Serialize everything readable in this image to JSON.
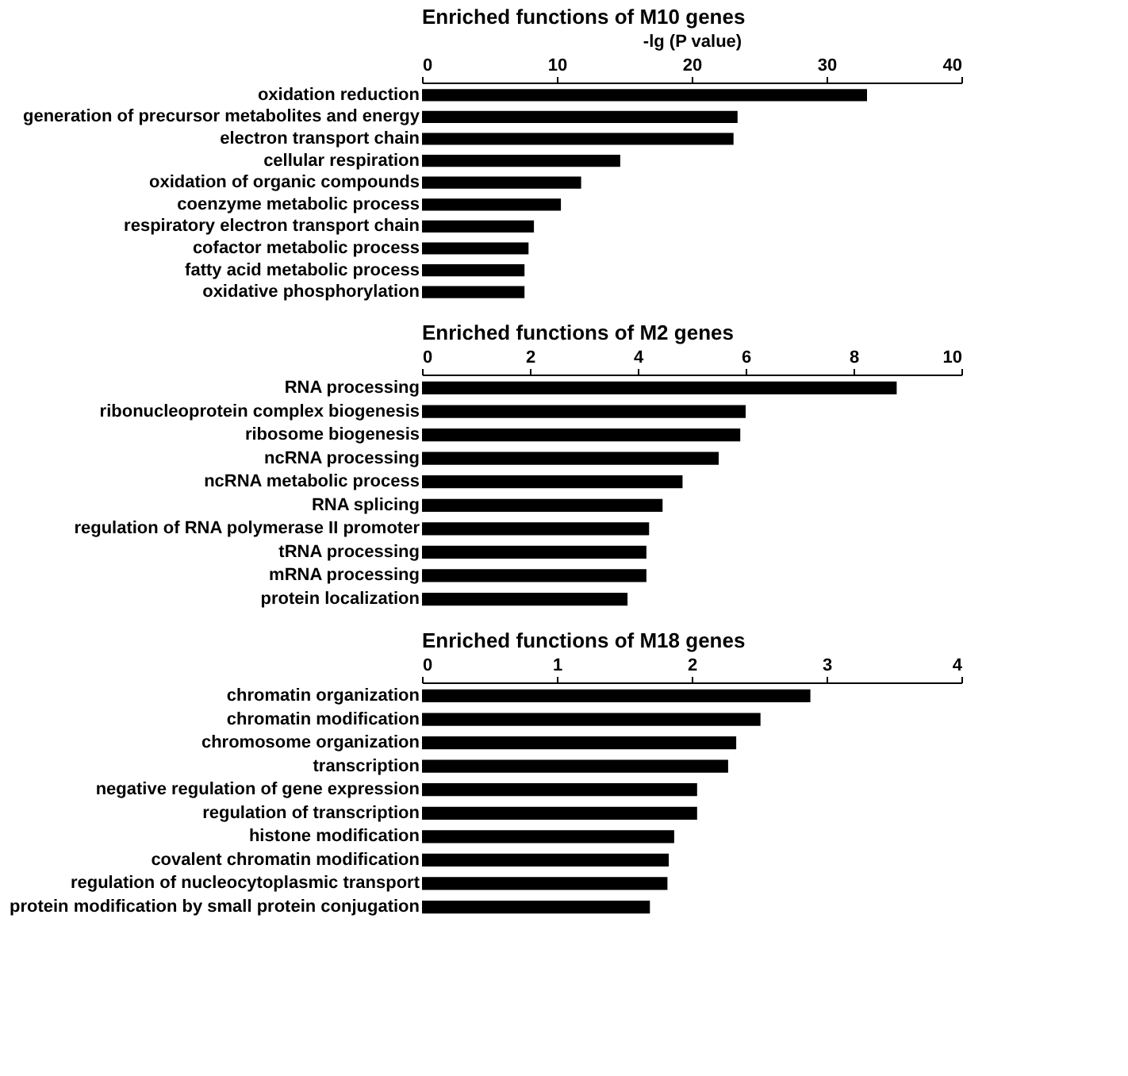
{
  "chart_data": [
    {
      "type": "bar",
      "orientation": "horizontal",
      "title": "Enriched  functions of M10 genes",
      "xlabel": "-lg (P value)",
      "color": "#000000",
      "xlim": [
        0,
        40
      ],
      "xticks": [
        0,
        10,
        20,
        30,
        40
      ],
      "categories": [
        "oxidation reduction",
        "generation of precursor metabolites and energy",
        "electron transport chain",
        "cellular respiration",
        "oxidation of organic compounds",
        "coenzyme metabolic process",
        "respiratory electron transport chain",
        "cofactor metabolic process",
        "fatty acid metabolic process",
        "oxidative phosphorylation"
      ],
      "values": [
        33.0,
        23.4,
        23.1,
        14.7,
        11.8,
        10.3,
        8.3,
        7.9,
        7.6,
        7.6
      ]
    },
    {
      "type": "bar",
      "orientation": "horizontal",
      "title": "Enriched  functions of M2 genes",
      "color": "#000000",
      "xlim": [
        0,
        10
      ],
      "xticks": [
        0,
        2,
        4,
        6,
        8,
        10
      ],
      "categories": [
        "RNA processing",
        "ribonucleoprotein complex biogenesis",
        "ribosome biogenesis",
        "ncRNA processing",
        "ncRNA metabolic process",
        "RNA splicing",
        "regulation of RNA polymerase II promoter",
        "tRNA processing",
        "mRNA processing",
        "protein localization"
      ],
      "values": [
        8.8,
        6.0,
        5.9,
        5.5,
        4.83,
        4.46,
        4.21,
        4.16,
        4.16,
        3.81
      ]
    },
    {
      "type": "bar",
      "orientation": "horizontal",
      "title": "Enriched functions of M18 genes",
      "color": "#000000",
      "xlim": [
        0,
        4
      ],
      "xticks": [
        0,
        1,
        2,
        3,
        4
      ],
      "categories": [
        "chromatin organization",
        "chromatin modification",
        "chromosome organization",
        "transcription",
        "negative regulation of gene expression",
        "regulation of transcription",
        "histone modification",
        "covalent chromatin modification",
        "regulation of nucleocytoplasmic transport",
        "protein modification by small protein conjugation"
      ],
      "values": [
        2.88,
        2.51,
        2.33,
        2.27,
        2.04,
        2.04,
        1.87,
        1.83,
        1.82,
        1.69
      ]
    }
  ]
}
